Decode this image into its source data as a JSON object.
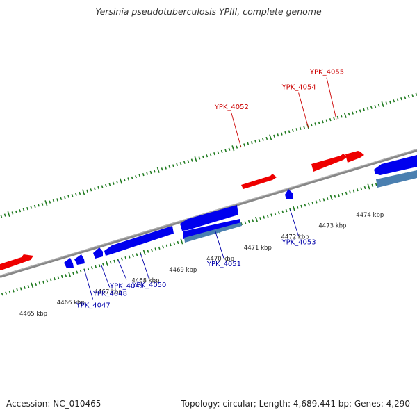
{
  "title": "Yersinia pseudotuberculosis YPIII, complete genome",
  "footer": {
    "accession": "Accession: NC_010465",
    "topology": "Topology: circular; Length: 4,689,441 bp; Genes: 4,290"
  },
  "colors": {
    "forward_gene": "#ee0000",
    "reverse_gene": "#0000ee",
    "rna_gene": "#4a7fb0",
    "backbone": "#888888",
    "ticks": "#1f7a1f",
    "forward_label": "#cc0000",
    "reverse_label": "#0000aa"
  },
  "axis": {
    "ticks": [
      {
        "pos": 4465,
        "label": "4465 kbp"
      },
      {
        "pos": 4466,
        "label": "4466 kbp"
      },
      {
        "pos": 4467,
        "label": "4467 kbp"
      },
      {
        "pos": 4468,
        "label": "4468 kbp"
      },
      {
        "pos": 4469,
        "label": "4469 kbp"
      },
      {
        "pos": 4470,
        "label": "4470 kbp"
      },
      {
        "pos": 4471,
        "label": "4471 kbp"
      },
      {
        "pos": 4472,
        "label": "4472 kbp"
      },
      {
        "pos": 4473,
        "label": "4473 kbp"
      },
      {
        "pos": 4474,
        "label": "4474 kbp"
      }
    ]
  },
  "gene_labels": {
    "forward": [
      {
        "name": "YPK_4052",
        "pos": 4471.2
      },
      {
        "name": "YPK_4054",
        "pos": 4473.0
      },
      {
        "name": "YPK_4055",
        "pos": 4473.75
      }
    ],
    "reverse": [
      {
        "name": "YPK_4047",
        "pos": 4466.4
      },
      {
        "name": "YPK_4048",
        "pos": 4466.85
      },
      {
        "name": "YPK_4049",
        "pos": 4467.3
      },
      {
        "name": "YPK_4050",
        "pos": 4467.9
      },
      {
        "name": "YPK_4051",
        "pos": 4469.9
      },
      {
        "name": "YPK_4053",
        "pos": 4471.9
      }
    ]
  }
}
